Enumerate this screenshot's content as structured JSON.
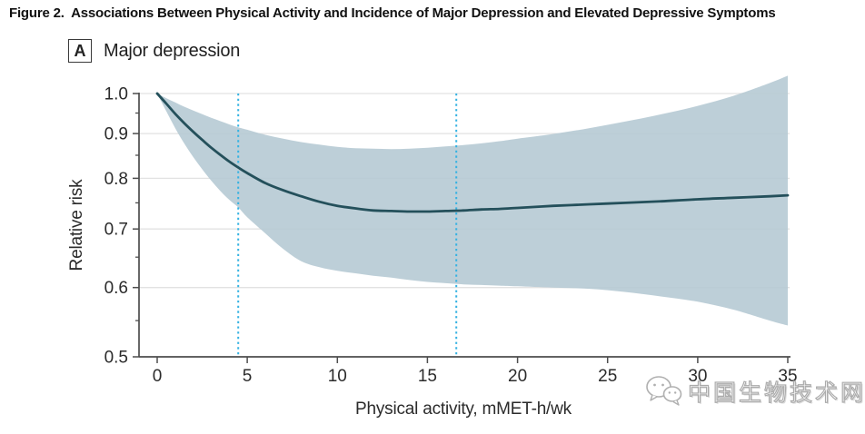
{
  "figure": {
    "title": "Figure 2.  Associations Between Physical Activity and Incidence of Major Depression and Elevated Depressive Symptoms"
  },
  "panel": {
    "label": "A",
    "title": "Major depression"
  },
  "watermark": {
    "text": "中国生物技术网",
    "icon": "wechat-logo"
  },
  "chart_data": {
    "type": "line",
    "subtype": "dose-response curve with 95% CI band",
    "title": "Major depression",
    "xlabel": "Physical activity, mMET-h/wk",
    "ylabel": "Relative risk",
    "xlim": [
      0,
      35
    ],
    "ylim": [
      0.5,
      1.0
    ],
    "y_scale": "log",
    "grid": "horizontal-major",
    "legend": "none",
    "x_ticks": [
      "0",
      "5",
      "10",
      "15",
      "20",
      "25",
      "30",
      "35"
    ],
    "y_ticks": [
      "1.0",
      "0.9",
      "0.8",
      "0.7",
      "0.6",
      "0.5"
    ],
    "y_minor_ticks": [
      0.95,
      0.85,
      0.75,
      0.65,
      0.55
    ],
    "reference_lines_x": [
      4.5,
      16.6
    ],
    "x": [
      0,
      0.5,
      1,
      1.5,
      2,
      2.5,
      3,
      3.5,
      4,
      4.5,
      5,
      6,
      7,
      8,
      9,
      10,
      11,
      12,
      13,
      14,
      15,
      16,
      17,
      18,
      19,
      20,
      22,
      24,
      26,
      28,
      30,
      32,
      34,
      35
    ],
    "series": [
      {
        "name": "Relative risk",
        "role": "mean",
        "values": [
          1.0,
          0.974,
          0.948,
          0.925,
          0.904,
          0.885,
          0.867,
          0.851,
          0.836,
          0.823,
          0.811,
          0.79,
          0.775,
          0.763,
          0.752,
          0.744,
          0.739,
          0.735,
          0.734,
          0.733,
          0.733,
          0.734,
          0.735,
          0.737,
          0.738,
          0.74,
          0.744,
          0.747,
          0.75,
          0.753,
          0.757,
          0.76,
          0.763,
          0.765
        ]
      },
      {
        "name": "95% CI lower",
        "role": "band-lower",
        "values": [
          1.0,
          0.955,
          0.913,
          0.877,
          0.846,
          0.819,
          0.795,
          0.774,
          0.756,
          0.741,
          0.722,
          0.692,
          0.664,
          0.643,
          0.633,
          0.627,
          0.623,
          0.619,
          0.616,
          0.612,
          0.609,
          0.607,
          0.605,
          0.604,
          0.603,
          0.602,
          0.6,
          0.598,
          0.593,
          0.586,
          0.578,
          0.566,
          0.55,
          0.543
        ]
      },
      {
        "name": "95% CI upper",
        "role": "band-upper",
        "values": [
          1.0,
          0.988,
          0.977,
          0.966,
          0.956,
          0.947,
          0.938,
          0.93,
          0.922,
          0.915,
          0.909,
          0.897,
          0.888,
          0.88,
          0.874,
          0.869,
          0.866,
          0.865,
          0.864,
          0.865,
          0.867,
          0.87,
          0.873,
          0.877,
          0.882,
          0.888,
          0.899,
          0.913,
          0.929,
          0.947,
          0.968,
          0.994,
          1.028,
          1.048
        ]
      }
    ],
    "colors": {
      "line": "#24505b",
      "band": "#b4c8d3",
      "reference_line": "#35b2e2",
      "grid": "#e2e2e2",
      "axis": "#4d4d4d",
      "tick_text": "#2b2b2b"
    }
  }
}
